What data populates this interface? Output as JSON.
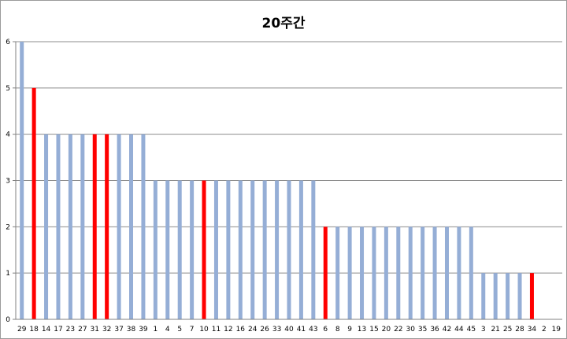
{
  "chart_data": {
    "type": "bar",
    "title": "20주간",
    "xlabel": "",
    "ylabel": "",
    "ylim": [
      0,
      6
    ],
    "yticks": [
      0,
      1,
      2,
      3,
      4,
      5,
      6
    ],
    "grid": "horizontal",
    "legend": "none",
    "colors": {
      "default": "#95aed6",
      "highlight": "#ff0000",
      "grid": "#8c8c8c"
    },
    "categories": [
      "29",
      "18",
      "14",
      "17",
      "23",
      "27",
      "31",
      "32",
      "37",
      "38",
      "39",
      "1",
      "4",
      "5",
      "7",
      "10",
      "11",
      "12",
      "16",
      "24",
      "26",
      "33",
      "40",
      "41",
      "43",
      "6",
      "8",
      "9",
      "13",
      "15",
      "20",
      "22",
      "30",
      "35",
      "36",
      "42",
      "44",
      "45",
      "3",
      "21",
      "25",
      "28",
      "34",
      "2",
      "19"
    ],
    "values": [
      6,
      5,
      4,
      4,
      4,
      4,
      4,
      4,
      4,
      4,
      4,
      3,
      3,
      3,
      3,
      3,
      3,
      3,
      3,
      3,
      3,
      3,
      3,
      3,
      3,
      2,
      2,
      2,
      2,
      2,
      2,
      2,
      2,
      2,
      2,
      2,
      2,
      2,
      1,
      1,
      1,
      1,
      1,
      0,
      0
    ],
    "highlighted": [
      "18",
      "31",
      "32",
      "10",
      "6",
      "34"
    ]
  }
}
